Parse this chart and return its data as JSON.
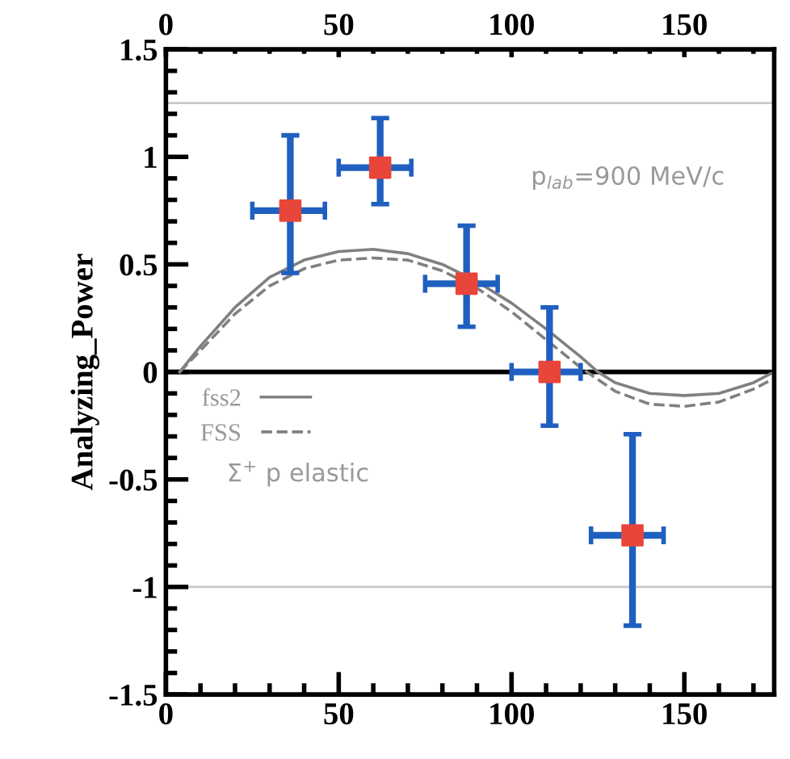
{
  "chart_data": {
    "type": "scatter",
    "ylabel": "Analyzing_Power",
    "xlim": [
      0,
      176
    ],
    "xticks": [
      0,
      50,
      100,
      150
    ],
    "x2lim": [
      0,
      176
    ],
    "x2ticks": [
      0,
      50,
      100,
      150
    ],
    "ylim": [
      -1.5,
      1.5
    ],
    "yticks": [
      -1.5,
      -1,
      -0.5,
      0,
      0.5,
      1,
      1.5
    ],
    "grid": false,
    "legend": "left",
    "annotations": [
      "p$_{lab}$=900 MeV/c",
      "Σ$^{+}$ p elastic"
    ],
    "ref_lines": [
      {
        "axis": "y",
        "value": 0,
        "color": "#000000"
      },
      {
        "axis": "y",
        "value": 1.25,
        "color": "#c8c8c8"
      },
      {
        "axis": "y",
        "value": -1,
        "color": "#c8c8c8"
      }
    ],
    "series": [
      {
        "color": "#e8463a",
        "marker": "square",
        "x": [
          36,
          62,
          87,
          111,
          135
        ],
        "values": [
          0.75,
          0.95,
          0.41,
          0.0,
          -0.76
        ],
        "errors": [
          [
            0.46,
            1.1
          ],
          [
            0.78,
            1.18
          ],
          [
            0.21,
            0.68
          ],
          [
            -0.25,
            0.3
          ],
          [
            -1.18,
            -0.29
          ]
        ],
        "xerrors": [
          [
            25,
            46
          ],
          [
            50,
            71
          ],
          [
            75,
            96
          ],
          [
            100,
            120
          ],
          [
            123,
            144
          ]
        ]
      },
      {
        "type": "line",
        "name": "fss2",
        "color": "#808080",
        "line_style": "solid",
        "marker": "none",
        "x": [
          4,
          10,
          20,
          30,
          40,
          50,
          60,
          70,
          80,
          90,
          100,
          110,
          120,
          125,
          130,
          140,
          150,
          160,
          170,
          176
        ],
        "values": [
          0.0,
          0.12,
          0.3,
          0.44,
          0.52,
          0.56,
          0.57,
          0.55,
          0.5,
          0.42,
          0.32,
          0.2,
          0.07,
          0.0,
          -0.05,
          -0.1,
          -0.11,
          -0.1,
          -0.05,
          0.0
        ]
      },
      {
        "type": "line",
        "name": "FSS",
        "color": "#808080",
        "line_style": "dashed",
        "marker": "none",
        "x": [
          4,
          10,
          20,
          30,
          40,
          50,
          60,
          70,
          80,
          90,
          100,
          110,
          120,
          130,
          140,
          150,
          160,
          170,
          176
        ],
        "values": [
          0.0,
          0.1,
          0.27,
          0.4,
          0.48,
          0.52,
          0.53,
          0.52,
          0.47,
          0.39,
          0.28,
          0.15,
          0.02,
          -0.09,
          -0.15,
          -0.16,
          -0.14,
          -0.08,
          -0.03
        ]
      }
    ]
  }
}
